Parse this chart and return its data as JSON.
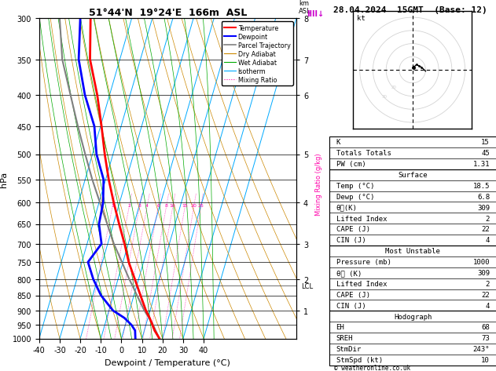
{
  "title_left": "51°44'N  19°24'E  166m  ASL",
  "title_right": "28.04.2024  15GMT  (Base: 12)",
  "xlabel": "Dewpoint / Temperature (°C)",
  "pressure_levels": [
    300,
    350,
    400,
    450,
    500,
    550,
    600,
    650,
    700,
    750,
    800,
    850,
    900,
    950,
    1000
  ],
  "temp_xlim": [
    -40,
    40
  ],
  "temp_profile": {
    "pressure": [
      1000,
      970,
      950,
      925,
      900,
      850,
      800,
      750,
      700,
      650,
      600,
      550,
      500,
      450,
      400,
      350,
      300
    ],
    "temperature": [
      18.5,
      15.0,
      13.2,
      10.8,
      8.0,
      3.2,
      -1.8,
      -7.2,
      -11.8,
      -17.2,
      -22.8,
      -28.5,
      -34.0,
      -39.5,
      -46.0,
      -54.5,
      -60.0
    ]
  },
  "dewpoint_profile": {
    "pressure": [
      1000,
      970,
      950,
      925,
      900,
      850,
      800,
      750,
      700,
      650,
      600,
      550,
      500,
      450,
      400,
      350,
      300
    ],
    "dewpoint": [
      6.8,
      5.5,
      3.0,
      -1.5,
      -8.0,
      -16.0,
      -22.0,
      -27.0,
      -23.0,
      -27.0,
      -28.0,
      -31.0,
      -38.0,
      -43.0,
      -52.0,
      -60.0,
      -65.0
    ]
  },
  "parcel_profile": {
    "pressure": [
      1000,
      970,
      950,
      925,
      900,
      850,
      820,
      800,
      750,
      700,
      650,
      600,
      550,
      500,
      450,
      400,
      350,
      300
    ],
    "temperature": [
      18.5,
      15.5,
      13.5,
      10.5,
      7.2,
      1.5,
      -2.0,
      -4.5,
      -10.5,
      -17.0,
      -23.0,
      -29.5,
      -36.5,
      -43.5,
      -51.0,
      -59.0,
      -68.0,
      -75.0
    ]
  },
  "lcl_pressure": 820,
  "mixing_ratios": [
    1,
    2,
    3,
    4,
    6,
    8,
    10,
    15,
    20,
    25
  ],
  "km_labels": [
    1,
    2,
    3,
    4,
    5,
    6,
    7,
    8
  ],
  "km_pressures": [
    900,
    800,
    700,
    600,
    500,
    400,
    350,
    300
  ],
  "colors": {
    "temperature": "#ff0000",
    "dewpoint": "#0000ff",
    "parcel": "#808080",
    "dry_adiabat": "#cc8800",
    "wet_adiabat": "#00aa00",
    "isotherm": "#00aaff",
    "mixing_ratio": "#ff00aa",
    "background": "#ffffff"
  },
  "indices": {
    "K": 15,
    "Totals_Totals": 45,
    "PW_cm": 1.31,
    "Surface_Temp": 18.5,
    "Surface_Dewp": 6.8,
    "Surface_theta_e": 309,
    "Surface_LI": 2,
    "Surface_CAPE": 22,
    "Surface_CIN": 4,
    "MU_Pressure": 1000,
    "MU_theta_e": 309,
    "MU_LI": 2,
    "MU_CAPE": 22,
    "MU_CIN": 4,
    "Hodo_EH": 68,
    "Hodo_SREH": 73,
    "StmDir": 243,
    "StmSpd_kt": 10
  }
}
